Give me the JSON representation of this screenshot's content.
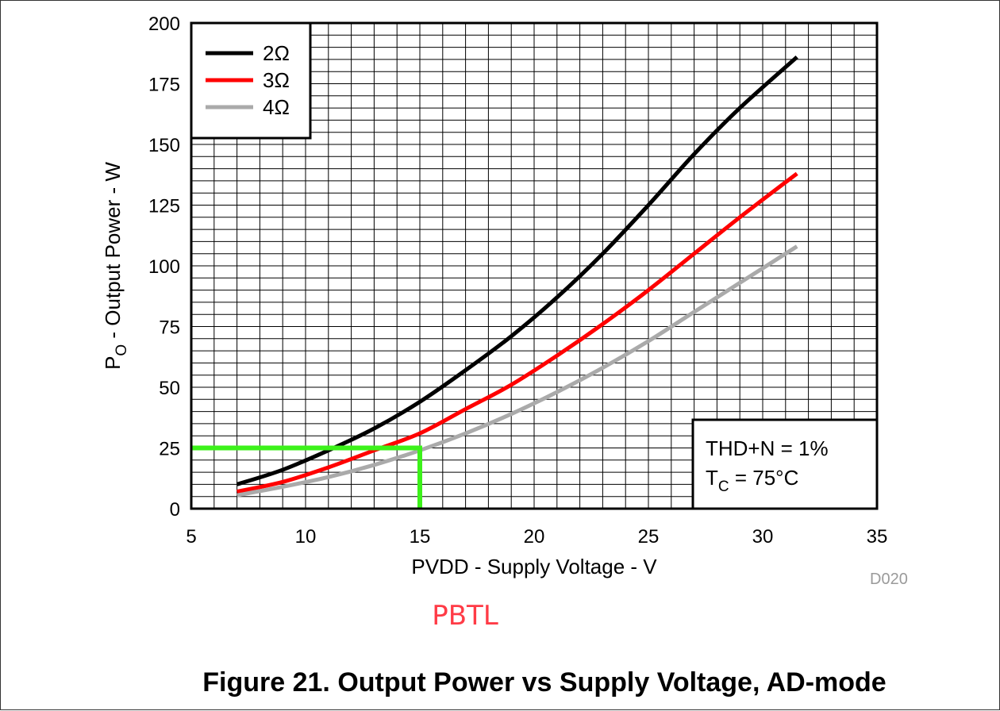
{
  "figure_caption": "Figure 21. Output Power vs Supply Voltage, AD-mode",
  "annotation_pbtl": "PBTL",
  "figure_code": "D020",
  "conditions": {
    "thd_text": "THD+N = 1%",
    "tc_main": "T",
    "tc_sub": "C",
    "tc_value": " = 75°C"
  },
  "chart_data": {
    "type": "line",
    "xlabel": "PVDD - Supply Voltage - V",
    "ylabel": {
      "main": "P",
      "sub": "O",
      "rest": " - Output Power - W"
    },
    "xlim": [
      5,
      35
    ],
    "ylim": [
      0,
      200
    ],
    "x_ticks": [
      5,
      10,
      15,
      20,
      25,
      30,
      35
    ],
    "y_ticks": [
      0,
      25,
      50,
      75,
      100,
      125,
      150,
      175,
      200
    ],
    "grid": true,
    "legend_position": "top-left",
    "series": [
      {
        "name": "2Ω",
        "color": "#000000",
        "x": [
          7,
          9,
          11,
          13,
          15,
          17,
          19,
          21,
          23,
          25,
          27,
          29,
          31.5
        ],
        "y": [
          10,
          16,
          24,
          33,
          44,
          57,
          71,
          87,
          105,
          125,
          146,
          165,
          186
        ]
      },
      {
        "name": "3Ω",
        "color": "#ff0000",
        "x": [
          7,
          9,
          11,
          13,
          15,
          17,
          19,
          21,
          23,
          25,
          27,
          29,
          31.5
        ],
        "y": [
          7,
          11,
          17,
          24,
          31,
          41,
          51,
          63,
          76,
          90,
          105,
          120,
          138
        ]
      },
      {
        "name": "4Ω",
        "color": "#aaaaaa",
        "x": [
          7,
          9,
          11,
          13,
          15,
          17,
          19,
          21,
          23,
          25,
          27,
          29,
          31.5
        ],
        "y": [
          5.5,
          9,
          13,
          18,
          24,
          31,
          39,
          48,
          58,
          69,
          81,
          93,
          108
        ]
      },
      {
        "color": "#3cf21a",
        "x": [
          5,
          15,
          15
        ],
        "y": [
          25,
          25,
          0
        ]
      }
    ]
  }
}
